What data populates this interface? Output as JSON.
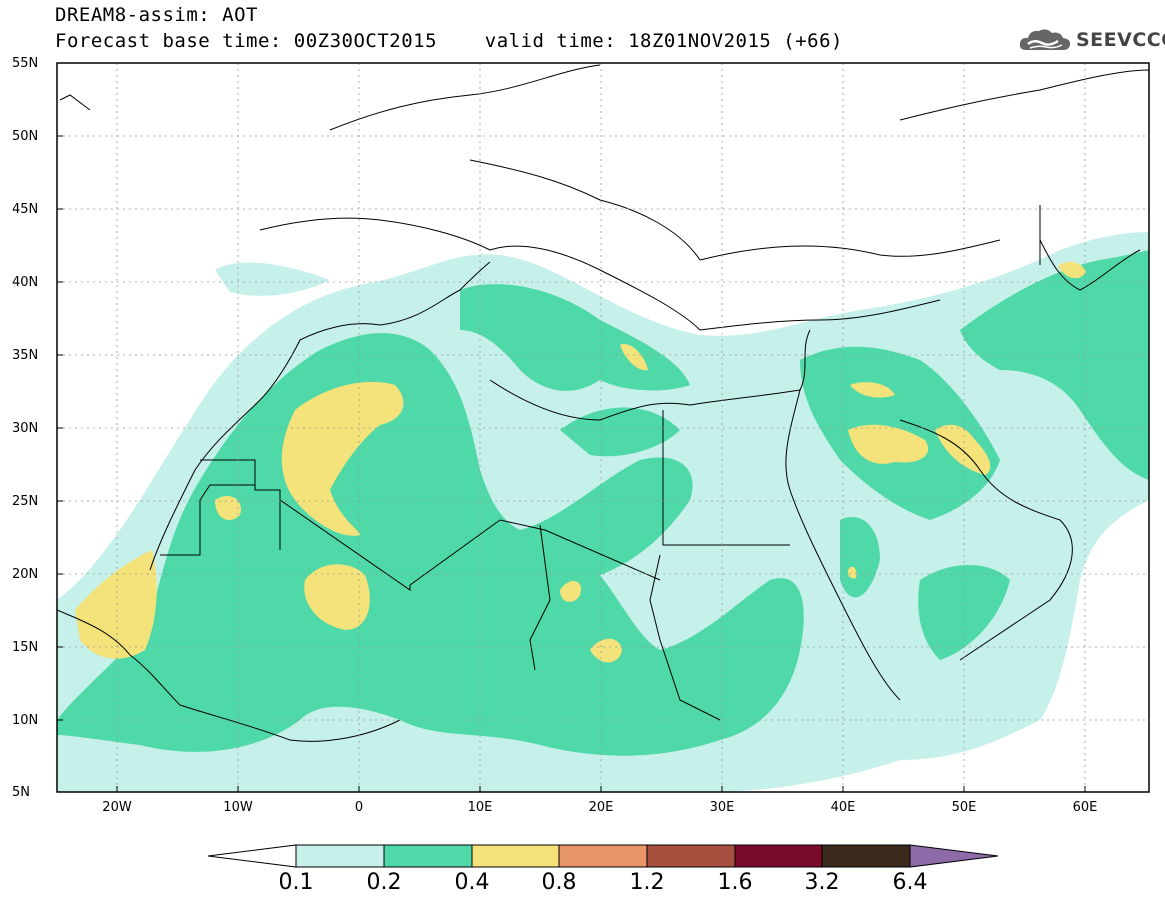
{
  "title": {
    "line1": "DREAM8-assim: AOT",
    "line2": "Forecast base time: 00Z30OCT2015    valid time: 18Z01NOV2015 (+66)"
  },
  "logo": {
    "text": "SEEVCCC",
    "icon": "cloud-icon"
  },
  "map": {
    "lat_labels": [
      "55N",
      "50N",
      "45N",
      "40N",
      "35N",
      "30N",
      "25N",
      "20N",
      "15N",
      "10N",
      "5N"
    ],
    "lon_labels": [
      "20W",
      "10W",
      "0",
      "10E",
      "20E",
      "30E",
      "40E",
      "50E",
      "60E"
    ]
  },
  "colorbar": {
    "levels": [
      "0.1",
      "0.2",
      "0.4",
      "0.8",
      "1.2",
      "1.6",
      "3.2",
      "6.4"
    ],
    "colors": [
      "#c6f0ea",
      "#4fd8a8",
      "#f3e37a",
      "#e7966a",
      "#a8503f",
      "#7a0a2c",
      "#3b2a1c",
      "#8f6aa8"
    ]
  }
}
